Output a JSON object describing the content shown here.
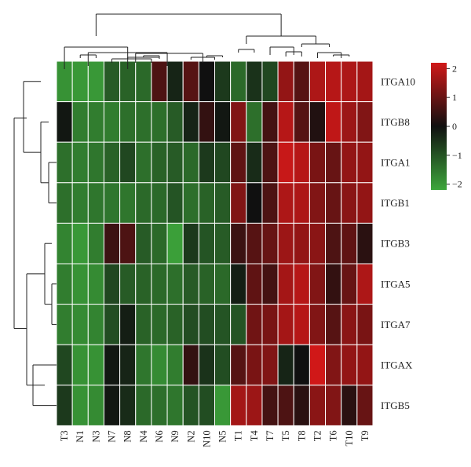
{
  "chart_data": {
    "type": "heatmap",
    "title": "",
    "xlabel": "",
    "ylabel": "",
    "columns": [
      "T3",
      "N1",
      "N3",
      "N7",
      "N8",
      "N4",
      "N6",
      "N9",
      "N2",
      "N10",
      "N5",
      "T1",
      "T4",
      "T7",
      "T5",
      "T8",
      "T2",
      "T6",
      "T10",
      "T9"
    ],
    "rows": [
      "ITGA10",
      "ITGB8",
      "ITGA1",
      "ITGB1",
      "ITGB3",
      "ITGA5",
      "ITGA7",
      "ITGAX",
      "ITGB5"
    ],
    "values": [
      [
        -1.9,
        -2.0,
        -2.0,
        -1.1,
        -1.2,
        -1.3,
        0.7,
        -0.3,
        0.8,
        0.0,
        -0.6,
        -1.3,
        -0.5,
        -0.8,
        1.5,
        0.8,
        1.8,
        1.9,
        1.8,
        1.7
      ],
      [
        -0.1,
        -1.6,
        -1.6,
        -1.6,
        -1.4,
        -1.4,
        -1.4,
        -1.1,
        -0.3,
        0.4,
        -0.1,
        1.3,
        -1.4,
        0.6,
        1.9,
        0.8,
        0.2,
        2.0,
        1.6,
        1.3
      ],
      [
        -1.4,
        -1.6,
        -1.5,
        -1.2,
        -0.8,
        -1.4,
        -1.2,
        -1.1,
        -1.3,
        -0.6,
        -0.8,
        0.9,
        -0.4,
        0.7,
        2.1,
        1.9,
        1.2,
        1.0,
        1.5,
        1.5
      ],
      [
        -1.4,
        -1.6,
        -1.5,
        -1.5,
        -1.5,
        -1.3,
        -1.3,
        -1.0,
        -1.4,
        -1.2,
        -1.1,
        1.3,
        0.0,
        0.7,
        1.8,
        1.8,
        1.3,
        1.0,
        1.4,
        1.5
      ],
      [
        -1.7,
        -2.0,
        -1.6,
        0.5,
        0.7,
        -1.1,
        -1.3,
        -2.1,
        -0.6,
        -1.0,
        -1.1,
        0.5,
        0.8,
        1.0,
        1.6,
        1.5,
        1.4,
        0.7,
        0.9,
        0.3
      ],
      [
        -1.6,
        -1.9,
        -1.8,
        -0.8,
        -1.1,
        -1.2,
        -1.3,
        -1.4,
        -1.1,
        -1.2,
        -1.3,
        -0.2,
        0.9,
        0.6,
        1.7,
        1.9,
        1.3,
        0.4,
        1.0,
        1.8
      ],
      [
        -1.6,
        -1.8,
        -1.7,
        -0.9,
        -0.2,
        -1.2,
        -1.3,
        -1.2,
        -0.9,
        -0.9,
        -1.0,
        -1.0,
        1.1,
        1.2,
        1.7,
        1.9,
        1.3,
        0.8,
        1.4,
        1.2
      ],
      [
        -0.8,
        -1.9,
        -1.9,
        -0.1,
        -0.3,
        -1.5,
        -1.8,
        -1.6,
        0.4,
        -0.5,
        -0.9,
        0.8,
        1.2,
        1.3,
        -0.3,
        0.0,
        2.2,
        1.3,
        1.5,
        1.5
      ],
      [
        -0.6,
        -1.9,
        -1.8,
        -0.1,
        -0.4,
        -1.3,
        -1.4,
        -1.5,
        -1.0,
        -0.9,
        -2.0,
        1.7,
        1.6,
        0.6,
        0.7,
        0.3,
        1.4,
        1.3,
        0.3,
        1.0
      ]
    ],
    "colorbar": {
      "min": -2.2,
      "max": 2.2,
      "ticks": [
        2,
        1,
        0,
        -1,
        -2
      ],
      "tick_labels": [
        "2",
        "1",
        "0",
        "−1",
        "−2"
      ],
      "low_color": "#3da63b",
      "mid_color": "#101010",
      "high_color": "#d01818"
    },
    "grid": true,
    "legend_position": "top-right"
  }
}
